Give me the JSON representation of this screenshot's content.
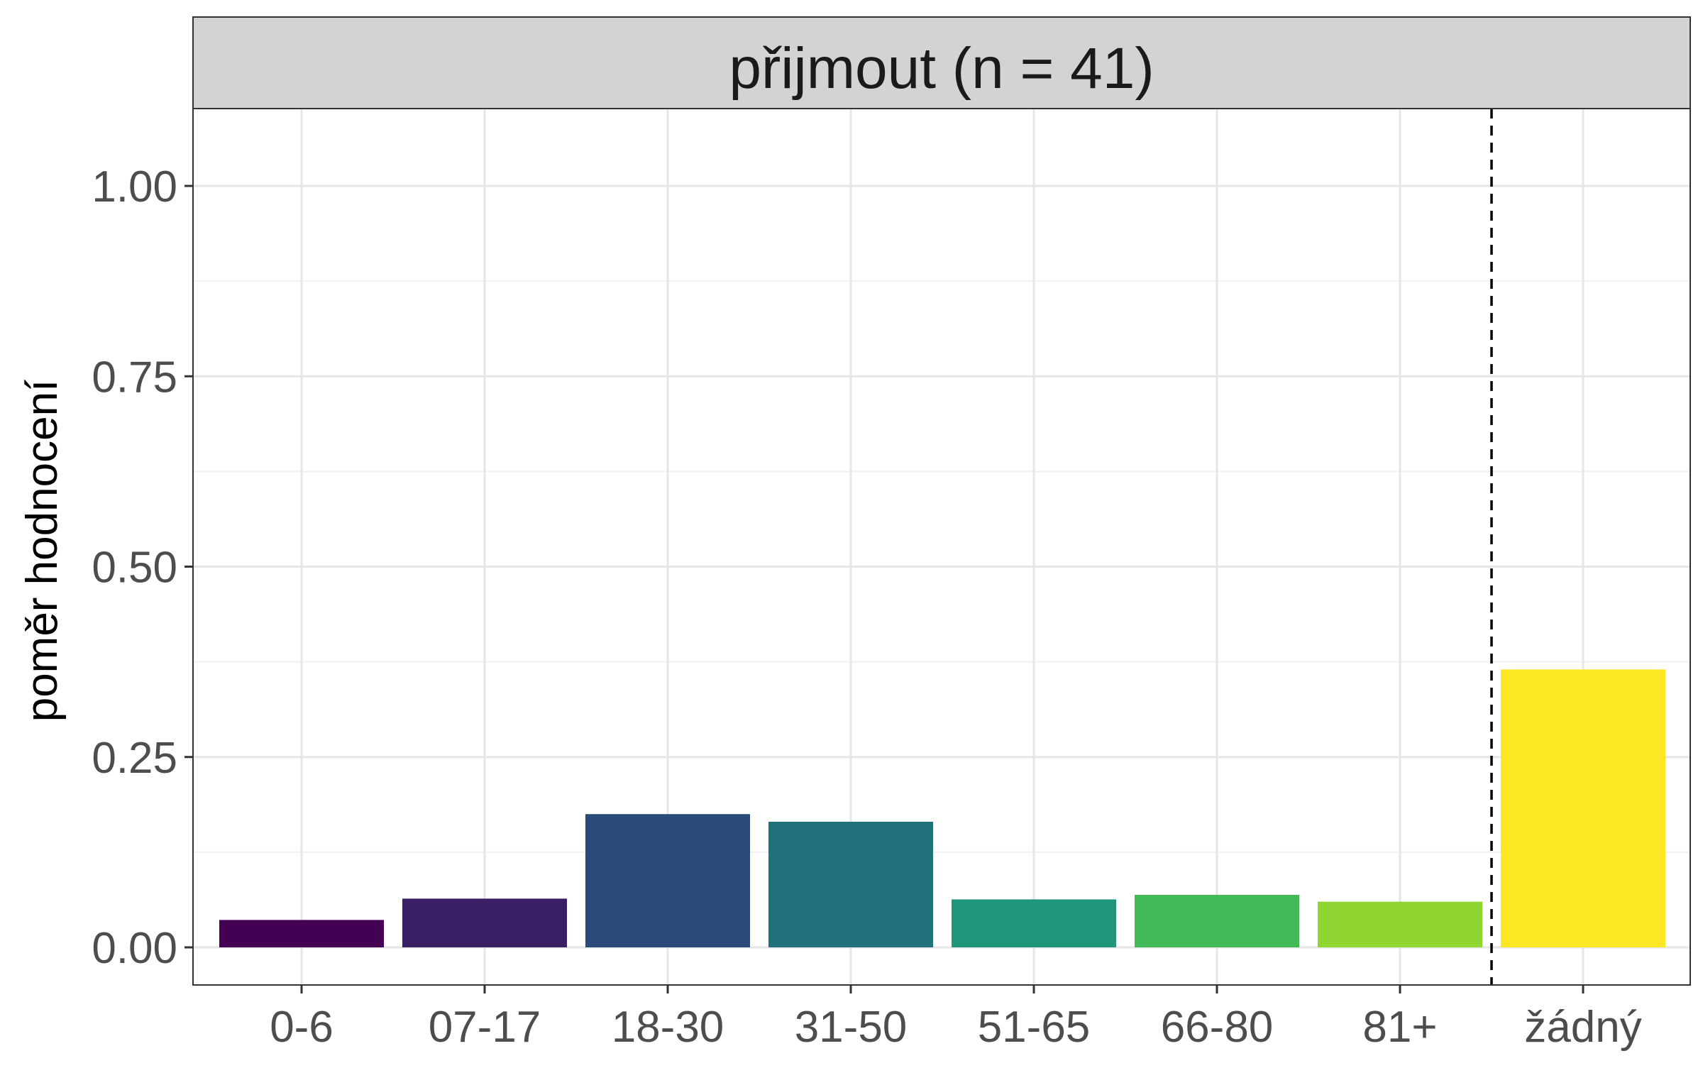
{
  "chart_data": {
    "type": "bar",
    "facet_title": "přijmout (n = 41)",
    "categories": [
      "0-6",
      "07-17",
      "18-30",
      "31-50",
      "51-65",
      "66-80",
      "81+",
      "žádný"
    ],
    "values": [
      0.036,
      0.064,
      0.175,
      0.165,
      0.063,
      0.069,
      0.06,
      0.365
    ],
    "colors": [
      "#440154",
      "#3B1F66",
      "#2A4A7A",
      "#21717B",
      "#22967A",
      "#43BA58",
      "#8FD633",
      "#FDE725"
    ],
    "xlabel": "",
    "ylabel": "poměr hodnocení",
    "ylim": [
      -0.05,
      1.1
    ],
    "yticks": [
      0.0,
      0.25,
      0.5,
      0.75,
      1.0
    ],
    "ytick_labels": [
      "0.00",
      "0.25",
      "0.50",
      "0.75",
      "1.00"
    ],
    "reference_line": {
      "style": "dashed",
      "between_categories": [
        "81+",
        "žádný"
      ]
    },
    "grid": true,
    "legend": "none"
  }
}
